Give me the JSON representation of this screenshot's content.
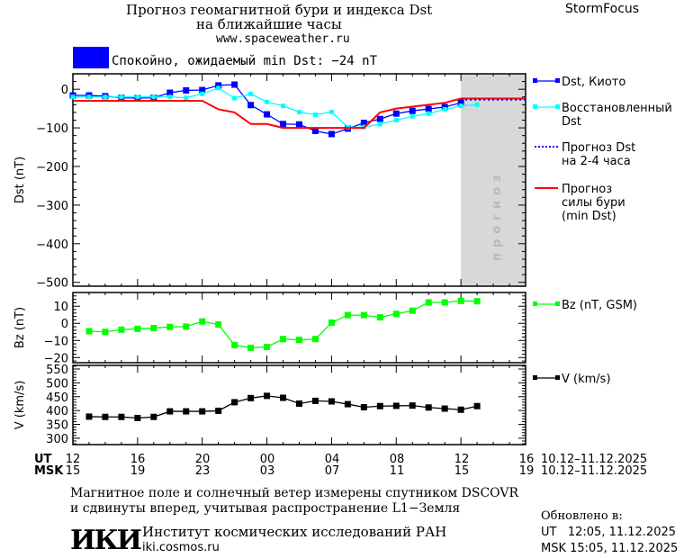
{
  "header": {
    "title_line1": "Прогноз геомагнитной бури и индекса Dst",
    "title_line2": "на ближайшие часы",
    "url": "www.spaceweather.ru",
    "brand": "StormFocus"
  },
  "status": {
    "text": "Спокойно, ожидаемый min Dst: −24 nT",
    "color": "#0000ff"
  },
  "legend": [
    {
      "label1": "Dst, Киото",
      "label2": "",
      "color": "#0000ff",
      "style": "line-square"
    },
    {
      "label1": "Восстановленный",
      "label2": "Dst",
      "color": "#00ffff",
      "style": "line-square"
    },
    {
      "label1": "Прогноз Dst",
      "label2": "на 2-4 часа",
      "color": "#0000ff",
      "style": "dotted"
    },
    {
      "label1": "Прогноз",
      "label2": "силы бури",
      "label3": "(min Dst)",
      "color": "#ff0000",
      "style": "line"
    },
    {
      "label1": "Bz (nT, GSM)",
      "label2": "",
      "color": "#00ff00",
      "style": "line-square"
    },
    {
      "label1": "V (km/s)",
      "label2": "",
      "color": "#000000",
      "style": "line-square"
    }
  ],
  "forecast_band": {
    "label": "прогноз",
    "start": "11.12 12:00",
    "end": "11.12 16:00",
    "color": "#d8d8d8"
  },
  "xaxis": {
    "ut_label": "UT",
    "msk_label": "MSK",
    "ut_ticks": [
      "12",
      "16",
      "20",
      "00",
      "04",
      "08",
      "12",
      "16"
    ],
    "msk_ticks": [
      "15",
      "19",
      "23",
      "03",
      "07",
      "11",
      "15",
      "19"
    ],
    "date_range": "10.12–11.12.2025",
    "range": [
      "10.12 12:00",
      "11.12 16:00"
    ]
  },
  "chart_data": [
    {
      "type": "line",
      "ylabel": "Dst (nT)",
      "ylim": [
        -510,
        40
      ],
      "yticks": [
        0,
        -100,
        -200,
        -300,
        -400,
        -500
      ],
      "series": [
        {
          "name": "Dst, Киото",
          "color": "#0000ff",
          "marker": "square",
          "times": [
            "10.12 12:00",
            "10.12 13:00",
            "10.12 14:00",
            "10.12 15:00",
            "10.12 16:00",
            "10.12 17:00",
            "10.12 18:00",
            "10.12 19:00",
            "10.12 20:00",
            "10.12 21:00",
            "10.12 22:00",
            "10.12 23:00",
            "11.12 00:00",
            "11.12 01:00",
            "11.12 02:00",
            "11.12 03:00",
            "11.12 04:00",
            "11.12 05:00",
            "11.12 06:00",
            "11.12 07:00",
            "11.12 08:00",
            "11.12 09:00",
            "11.12 10:00",
            "11.12 11:00",
            "11.12 12:00"
          ],
          "values": [
            -16,
            -16,
            -18,
            -22,
            -23,
            -22,
            -9,
            -3,
            -2,
            10,
            12,
            -41,
            -65,
            -90,
            -91,
            -108,
            -116,
            -102,
            -87,
            -77,
            -63,
            -56,
            -51,
            -46,
            -35
          ]
        },
        {
          "name": "Восстановленный Dst",
          "color": "#00ffff",
          "marker": "square-small",
          "times": [
            "10.12 12:00",
            "10.12 13:00",
            "10.12 14:00",
            "10.12 15:00",
            "10.12 16:00",
            "10.12 17:00",
            "10.12 18:00",
            "10.12 19:00",
            "10.12 20:00",
            "10.12 21:00",
            "10.12 22:00",
            "10.12 23:00",
            "11.12 00:00",
            "11.12 01:00",
            "11.12 02:00",
            "11.12 03:00",
            "11.12 04:00",
            "11.12 05:00",
            "11.12 06:00",
            "11.12 07:00",
            "11.12 08:00",
            "11.12 09:00",
            "11.12 10:00",
            "11.12 11:00",
            "11.12 12:00",
            "11.12 13:00"
          ],
          "values": [
            -20,
            -20,
            -20,
            -20,
            -20,
            -20,
            -20,
            -22,
            -12,
            3,
            -23,
            -12,
            -33,
            -43,
            -59,
            -66,
            -59,
            -98,
            -98,
            -90,
            -80,
            -70,
            -63,
            -52,
            -43,
            -40
          ]
        },
        {
          "name": "Прогноз силы бури (min Dst)",
          "color": "#ff0000",
          "marker": "none",
          "times": [
            "10.12 12:00",
            "10.12 13:00",
            "10.12 14:00",
            "10.12 15:00",
            "10.12 16:00",
            "10.12 17:00",
            "10.12 18:00",
            "10.12 19:00",
            "10.12 20:00",
            "10.12 21:00",
            "10.12 22:00",
            "10.12 23:00",
            "11.12 00:00",
            "11.12 01:00",
            "11.12 02:00",
            "11.12 03:00",
            "11.12 04:00",
            "11.12 05:00",
            "11.12 06:00",
            "11.12 07:00",
            "11.12 08:00",
            "11.12 09:00",
            "11.12 10:00",
            "11.12 11:00",
            "11.12 12:00",
            "11.12 13:00",
            "11.12 14:00",
            "11.12 15:00",
            "11.12 16:00"
          ],
          "values": [
            -30,
            -30,
            -30,
            -30,
            -30,
            -30,
            -30,
            -30,
            -30,
            -52,
            -60,
            -90,
            -90,
            -100,
            -100,
            -100,
            -100,
            -100,
            -100,
            -60,
            -50,
            -45,
            -40,
            -35,
            -24,
            -24,
            -24,
            -24,
            -24
          ]
        },
        {
          "name": "Прогноз Dst на 2-4 часа",
          "color": "#0000ff",
          "marker": "dotted",
          "times": [
            "11.12 12:00",
            "11.12 16:00"
          ],
          "values": [
            -27,
            -27
          ]
        }
      ]
    },
    {
      "type": "line",
      "ylabel": "Bz (nT)",
      "ylim": [
        -23,
        18
      ],
      "yticks": [
        10,
        0,
        -10,
        -20
      ],
      "series": [
        {
          "name": "Bz (nT, GSM)",
          "color": "#00ff00",
          "marker": "square",
          "times": [
            "10.12 13:00",
            "10.12 14:00",
            "10.12 15:00",
            "10.12 16:00",
            "10.12 17:00",
            "10.12 18:00",
            "10.12 19:00",
            "10.12 20:00",
            "10.12 21:00",
            "10.12 22:00",
            "10.12 23:00",
            "11.12 00:00",
            "11.12 01:00",
            "11.12 02:00",
            "11.12 03:00",
            "11.12 04:00",
            "11.12 05:00",
            "11.12 06:00",
            "11.12 07:00",
            "11.12 08:00",
            "11.12 09:00",
            "11.12 10:00",
            "11.12 11:00",
            "11.12 12:00",
            "11.12 13:00"
          ],
          "values": [
            -4.6,
            -5,
            -3.7,
            -3.2,
            -2.8,
            -2.1,
            -1.9,
            1.1,
            -0.7,
            -12.7,
            -14.3,
            -13.8,
            -9.2,
            -9.7,
            -9.2,
            0.4,
            4.8,
            4.8,
            3.5,
            5.5,
            7.4,
            12.2,
            12.2,
            13.1,
            12.9
          ]
        }
      ]
    },
    {
      "type": "line",
      "ylabel": "V (km/s)",
      "ylim": [
        277,
        563
      ],
      "yticks": [
        550,
        500,
        450,
        400,
        350,
        300
      ],
      "series": [
        {
          "name": "V (km/s)",
          "color": "#000000",
          "marker": "square",
          "times": [
            "10.12 13:00",
            "10.12 14:00",
            "10.12 15:00",
            "10.12 16:00",
            "10.12 17:00",
            "10.12 18:00",
            "10.12 19:00",
            "10.12 20:00",
            "10.12 21:00",
            "10.12 22:00",
            "10.12 23:00",
            "11.12 00:00",
            "11.12 01:00",
            "11.12 02:00",
            "11.12 03:00",
            "11.12 04:00",
            "11.12 05:00",
            "11.12 06:00",
            "11.12 07:00",
            "11.12 08:00",
            "11.12 09:00",
            "11.12 10:00",
            "11.12 11:00",
            "11.12 12:00",
            "11.12 13:00"
          ],
          "values": [
            378,
            377,
            377,
            373,
            377,
            397,
            397,
            397,
            399,
            430,
            445,
            453,
            446,
            425,
            435,
            433,
            423,
            412,
            416,
            417,
            418,
            411,
            407,
            403,
            416
          ]
        }
      ]
    }
  ],
  "footer": {
    "note1": "Магнитное поле и солнечный ветер измерены спутником DSCOVR",
    "note2": "и сдвинуты вперед, учитывая распространение L1−Земля",
    "institute": "Институт космических исследований РАН",
    "site": "iki.cosmos.ru",
    "logo": "ИКИ",
    "updated_label": "Обновлено в:",
    "updated_ut": "UT   12:05, 11.12.2025",
    "updated_msk": "MSK 15:05, 11.12.2025"
  }
}
